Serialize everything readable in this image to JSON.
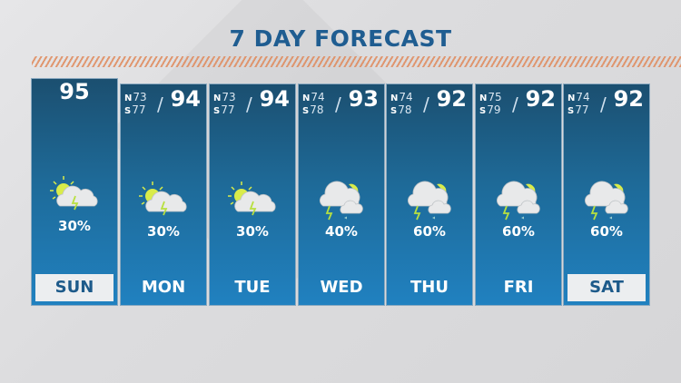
{
  "title": "7 DAY FORECAST",
  "colors": {
    "title": "#1f5d91",
    "card_top": "#1b4f70",
    "card_bottom": "#2081c0",
    "stripe": "#e08a5c",
    "sun": "#d9ec4a"
  },
  "days": [
    {
      "day": "SUN",
      "high": "95",
      "north": "",
      "south": "",
      "precip": "30%",
      "icon": "sun-cloud-lightning-icon",
      "highlighted": true,
      "today": true
    },
    {
      "day": "MON",
      "high": "94",
      "north": "73",
      "south": "77",
      "precip": "30%",
      "icon": "sun-cloud-lightning-icon",
      "highlighted": false
    },
    {
      "day": "TUE",
      "high": "94",
      "north": "73",
      "south": "77",
      "precip": "30%",
      "icon": "sun-cloud-lightning-icon",
      "highlighted": false
    },
    {
      "day": "WED",
      "high": "93",
      "north": "74",
      "south": "78",
      "precip": "40%",
      "icon": "thunderstorm-cloud-sun-icon",
      "highlighted": false
    },
    {
      "day": "THU",
      "high": "92",
      "north": "74",
      "south": "78",
      "precip": "60%",
      "icon": "thunderstorm-cloud-sun-icon",
      "highlighted": false
    },
    {
      "day": "FRI",
      "high": "92",
      "north": "75",
      "south": "79",
      "precip": "60%",
      "icon": "thunderstorm-cloud-sun-icon",
      "highlighted": false
    },
    {
      "day": "SAT",
      "high": "92",
      "north": "74",
      "south": "77",
      "precip": "60%",
      "icon": "thunderstorm-cloud-sun-icon",
      "highlighted": true
    }
  ],
  "labels": {
    "north": "N",
    "south": "S",
    "slash": "/"
  }
}
